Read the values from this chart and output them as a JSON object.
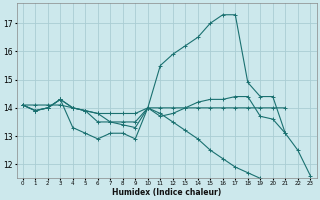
{
  "title": "",
  "xlabel": "Humidex (Indice chaleur)",
  "ylabel": "",
  "bg_color": "#cce8ec",
  "grid_color": "#aacdd4",
  "line_color": "#1a7070",
  "xlim": [
    -0.5,
    23.5
  ],
  "ylim": [
    11.5,
    17.7
  ],
  "yticks": [
    12,
    13,
    14,
    15,
    16,
    17
  ],
  "xticks": [
    0,
    1,
    2,
    3,
    4,
    5,
    6,
    7,
    8,
    9,
    10,
    11,
    12,
    13,
    14,
    15,
    16,
    17,
    18,
    19,
    20,
    21,
    22,
    23
  ],
  "series": [
    {
      "x": [
        0,
        1,
        2,
        3,
        4,
        5,
        6,
        7,
        8,
        9,
        10,
        11,
        12,
        13,
        14,
        15,
        16,
        17,
        18,
        19,
        20,
        21
      ],
      "y": [
        14.1,
        13.9,
        14.0,
        14.3,
        13.3,
        13.1,
        12.9,
        13.1,
        13.1,
        12.9,
        14.0,
        13.7,
        13.8,
        14.0,
        14.2,
        14.3,
        14.3,
        14.4,
        14.4,
        13.7,
        13.6,
        13.1
      ]
    },
    {
      "x": [
        0,
        1,
        2,
        3,
        4,
        5,
        6,
        7,
        8,
        9,
        10,
        11,
        12,
        13,
        14,
        15,
        16,
        17,
        18,
        19,
        20,
        21
      ],
      "y": [
        14.1,
        13.9,
        14.0,
        14.3,
        14.0,
        13.9,
        13.5,
        13.5,
        13.5,
        13.5,
        14.0,
        14.0,
        14.0,
        14.0,
        14.0,
        14.0,
        14.0,
        14.0,
        14.0,
        14.0,
        14.0,
        14.0
      ]
    },
    {
      "x": [
        0,
        1,
        2,
        3,
        4,
        5,
        6,
        7,
        8,
        9,
        10,
        11,
        12,
        13,
        14,
        15,
        16,
        17,
        18,
        19,
        20,
        21,
        22,
        23
      ],
      "y": [
        14.1,
        13.9,
        14.0,
        14.3,
        14.0,
        13.9,
        13.8,
        13.8,
        13.8,
        13.8,
        14.0,
        15.5,
        15.9,
        16.2,
        16.5,
        17.0,
        17.3,
        17.3,
        14.9,
        14.4,
        14.4,
        13.1,
        12.5,
        11.6
      ]
    },
    {
      "x": [
        0,
        1,
        2,
        3,
        4,
        5,
        6,
        7,
        8,
        9,
        10,
        11,
        12,
        13,
        14,
        15,
        16,
        17,
        18,
        19
      ],
      "y": [
        14.1,
        14.1,
        14.1,
        14.1,
        14.0,
        13.9,
        13.8,
        13.5,
        13.4,
        13.3,
        14.0,
        13.8,
        13.5,
        13.2,
        12.9,
        12.5,
        12.2,
        11.9,
        11.7,
        11.5
      ]
    }
  ]
}
